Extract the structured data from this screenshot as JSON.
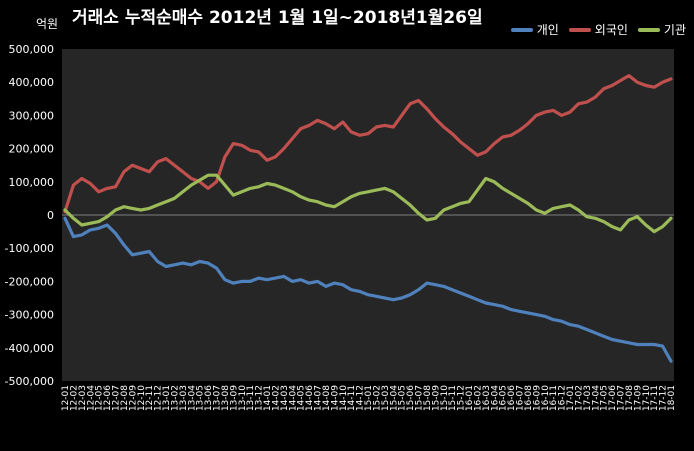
{
  "chart_data": {
    "type": "line",
    "title": "거래소 누적순매수 2012년 1월 1일~2018년1월26일",
    "yunit": "억원",
    "ylim": [
      -500000,
      500000
    ],
    "yticks": [
      500000,
      400000,
      300000,
      200000,
      100000,
      0,
      -100000,
      -200000,
      -300000,
      -400000,
      -500000
    ],
    "ytick_labels": [
      "500,000",
      "400,000",
      "300,000",
      "200,000",
      "100,000",
      "0",
      "-100,000",
      "-200,000",
      "-300,000",
      "-400,000",
      "-500,000"
    ],
    "legend_position": "top-right",
    "grid": false,
    "x": [
      "12-01",
      "12-02",
      "12-03",
      "12-04",
      "12-05",
      "12-06",
      "12-07",
      "12-08",
      "12-09",
      "12-10",
      "12-11",
      "12-12",
      "13-01",
      "13-02",
      "13-03",
      "13-04",
      "13-05",
      "13-06",
      "13-07",
      "13-08",
      "13-09",
      "13-10",
      "13-11",
      "13-12",
      "14-01",
      "14-02",
      "14-03",
      "14-04",
      "14-05",
      "14-06",
      "14-07",
      "14-08",
      "14-09",
      "14-10",
      "14-11",
      "14-12",
      "15-01",
      "15-02",
      "15-03",
      "15-04",
      "15-05",
      "15-06",
      "15-07",
      "15-08",
      "15-09",
      "15-10",
      "15-11",
      "15-12",
      "16-01",
      "16-02",
      "16-03",
      "16-04",
      "16-05",
      "16-06",
      "16-07",
      "16-08",
      "16-09",
      "16-10",
      "16-11",
      "16-12",
      "17-01",
      "17-02",
      "17-03",
      "17-04",
      "17-05",
      "17-06",
      "17-07",
      "17-08",
      "17-09",
      "17-10",
      "17-11",
      "17-12",
      "18-01"
    ],
    "series": [
      {
        "name": "개인",
        "color": "#4f81bd",
        "values": [
          -10000,
          -65000,
          -60000,
          -45000,
          -40000,
          -30000,
          -55000,
          -90000,
          -120000,
          -115000,
          -110000,
          -140000,
          -155000,
          -150000,
          -145000,
          -150000,
          -140000,
          -145000,
          -160000,
          -195000,
          -205000,
          -200000,
          -200000,
          -190000,
          -195000,
          -190000,
          -185000,
          -200000,
          -195000,
          -205000,
          -200000,
          -215000,
          -205000,
          -210000,
          -225000,
          -230000,
          -240000,
          -245000,
          -250000,
          -255000,
          -250000,
          -240000,
          -225000,
          -205000,
          -210000,
          -215000,
          -225000,
          -235000,
          -245000,
          -255000,
          -265000,
          -270000,
          -275000,
          -285000,
          -290000,
          -295000,
          -300000,
          -305000,
          -315000,
          -320000,
          -330000,
          -335000,
          -345000,
          -355000,
          -365000,
          -375000,
          -380000,
          -385000,
          -390000,
          -390000,
          -390000,
          -395000,
          -440000
        ]
      },
      {
        "name": "외국인",
        "color": "#c0504d",
        "values": [
          10000,
          90000,
          110000,
          95000,
          70000,
          80000,
          85000,
          130000,
          150000,
          140000,
          130000,
          160000,
          170000,
          150000,
          130000,
          110000,
          100000,
          80000,
          100000,
          175000,
          215000,
          210000,
          195000,
          190000,
          165000,
          175000,
          200000,
          230000,
          260000,
          270000,
          285000,
          275000,
          260000,
          280000,
          250000,
          240000,
          245000,
          265000,
          270000,
          265000,
          300000,
          335000,
          345000,
          320000,
          290000,
          265000,
          245000,
          220000,
          200000,
          180000,
          190000,
          215000,
          235000,
          240000,
          255000,
          275000,
          300000,
          310000,
          315000,
          300000,
          310000,
          335000,
          340000,
          355000,
          380000,
          390000,
          405000,
          420000,
          400000,
          390000,
          385000,
          400000,
          410000
        ]
      },
      {
        "name": "기관",
        "color": "#9bbb59",
        "values": [
          15000,
          -10000,
          -30000,
          -25000,
          -20000,
          -5000,
          15000,
          25000,
          20000,
          15000,
          20000,
          30000,
          40000,
          50000,
          70000,
          90000,
          105000,
          120000,
          120000,
          90000,
          60000,
          70000,
          80000,
          85000,
          95000,
          90000,
          80000,
          70000,
          55000,
          45000,
          40000,
          30000,
          25000,
          40000,
          55000,
          65000,
          70000,
          75000,
          80000,
          70000,
          50000,
          30000,
          5000,
          -15000,
          -10000,
          15000,
          25000,
          35000,
          40000,
          75000,
          110000,
          100000,
          80000,
          65000,
          50000,
          35000,
          15000,
          5000,
          20000,
          25000,
          30000,
          15000,
          -5000,
          -10000,
          -20000,
          -35000,
          -45000,
          -15000,
          -5000,
          -30000,
          -50000,
          -35000,
          -10000
        ]
      }
    ]
  }
}
